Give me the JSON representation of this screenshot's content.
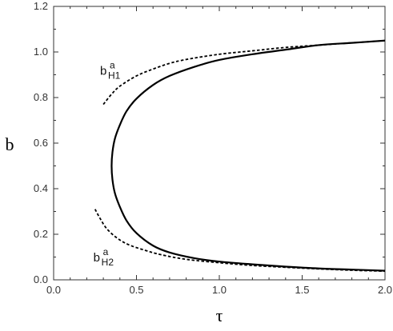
{
  "chart_data": {
    "type": "line",
    "title": "",
    "xlabel": "τ",
    "ylabel": "b",
    "xlim": [
      0.0,
      2.0
    ],
    "ylim": [
      0.0,
      1.2
    ],
    "x_ticks": [
      "0.0",
      "0.5",
      "1.0",
      "1.5",
      "2.0"
    ],
    "y_ticks": [
      "0.0",
      "0.2",
      "0.4",
      "0.6",
      "0.8",
      "1.0",
      "1.2"
    ],
    "grid": false,
    "legend": "none",
    "series": [
      {
        "style": "solid",
        "color": "#000000",
        "points": [
          [
            2.0,
            1.05
          ],
          [
            1.8,
            1.04
          ],
          [
            1.6,
            1.03
          ],
          [
            1.4,
            1.01
          ],
          [
            1.2,
            0.99
          ],
          [
            1.0,
            0.965
          ],
          [
            0.85,
            0.935
          ],
          [
            0.7,
            0.895
          ],
          [
            0.6,
            0.855
          ],
          [
            0.5,
            0.795
          ],
          [
            0.44,
            0.74
          ],
          [
            0.4,
            0.68
          ],
          [
            0.37,
            0.62
          ],
          [
            0.355,
            0.56
          ],
          [
            0.35,
            0.5
          ],
          [
            0.355,
            0.44
          ],
          [
            0.37,
            0.38
          ],
          [
            0.4,
            0.32
          ],
          [
            0.44,
            0.26
          ],
          [
            0.5,
            0.205
          ],
          [
            0.6,
            0.15
          ],
          [
            0.7,
            0.12
          ],
          [
            0.85,
            0.095
          ],
          [
            1.0,
            0.08
          ],
          [
            1.2,
            0.068
          ],
          [
            1.4,
            0.058
          ],
          [
            1.6,
            0.05
          ],
          [
            1.8,
            0.045
          ],
          [
            2.0,
            0.04
          ]
        ]
      },
      {
        "style": "dashed",
        "color": "#000000",
        "points": [
          [
            0.3,
            0.77
          ],
          [
            0.35,
            0.815
          ],
          [
            0.4,
            0.85
          ],
          [
            0.5,
            0.895
          ],
          [
            0.6,
            0.925
          ],
          [
            0.7,
            0.95
          ],
          [
            0.8,
            0.967
          ],
          [
            1.0,
            0.99
          ],
          [
            1.2,
            1.005
          ],
          [
            1.4,
            1.02
          ],
          [
            1.6,
            1.03
          ],
          [
            1.8,
            1.04
          ],
          [
            2.0,
            1.05
          ]
        ]
      },
      {
        "style": "dashed",
        "color": "#000000",
        "points": [
          [
            0.25,
            0.31
          ],
          [
            0.28,
            0.27
          ],
          [
            0.32,
            0.225
          ],
          [
            0.38,
            0.185
          ],
          [
            0.45,
            0.155
          ],
          [
            0.55,
            0.13
          ],
          [
            0.65,
            0.11
          ],
          [
            0.8,
            0.09
          ],
          [
            1.0,
            0.075
          ],
          [
            1.2,
            0.063
          ],
          [
            1.4,
            0.055
          ],
          [
            1.6,
            0.048
          ],
          [
            1.8,
            0.042
          ],
          [
            2.0,
            0.038
          ]
        ]
      }
    ],
    "annotations": [
      {
        "base": "b",
        "sup": "a",
        "sub": "H1",
        "x": 0.28,
        "y": 0.9
      },
      {
        "base": "b",
        "sup": "a",
        "sub": "H2",
        "x": 0.24,
        "y": 0.08
      }
    ]
  }
}
